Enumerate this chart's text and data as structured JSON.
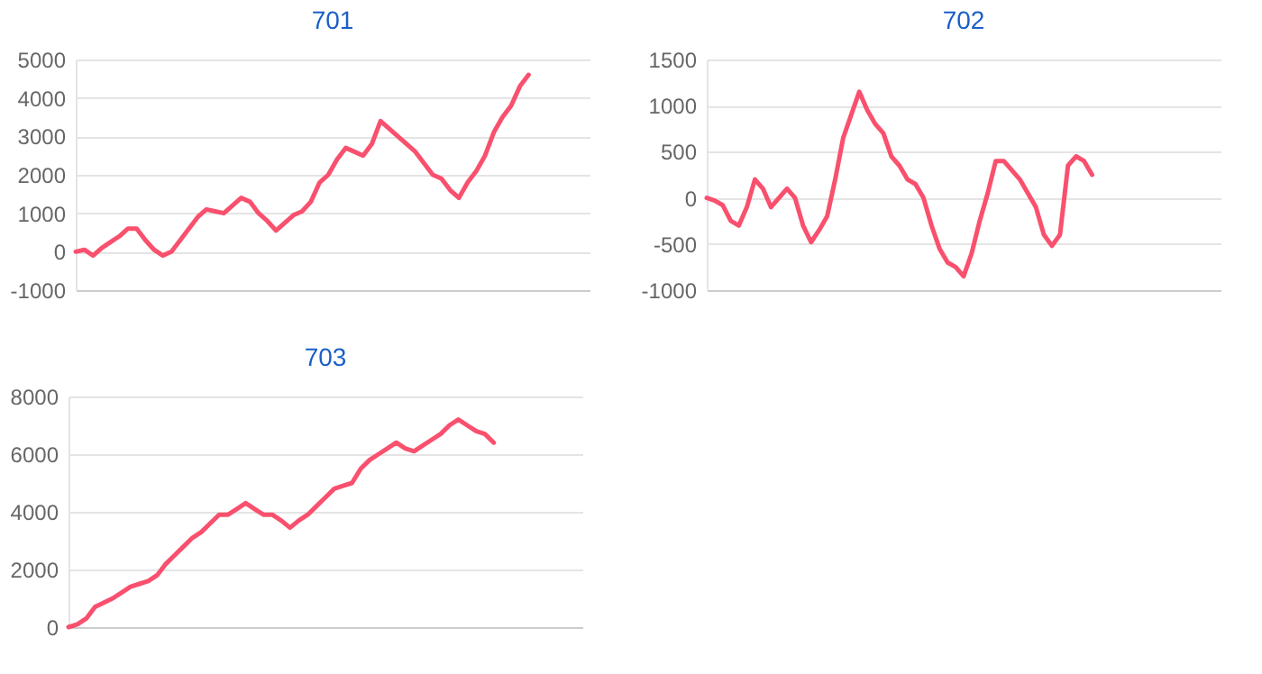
{
  "chart_data": [
    {
      "type": "line",
      "title": "701",
      "color": "#f9506e",
      "categories": [
        null,
        null,
        null,
        null,
        null,
        null,
        null,
        null,
        null,
        null,
        null,
        null,
        null,
        null,
        null,
        null,
        null,
        null,
        null,
        null,
        null,
        null,
        null,
        null,
        null,
        null,
        null,
        null,
        null,
        null,
        null,
        null,
        null,
        null,
        null,
        null,
        null,
        null,
        null,
        null,
        null,
        null,
        null,
        null,
        null,
        null,
        null,
        null,
        null,
        null,
        null,
        null,
        null,
        null,
        null,
        null,
        null,
        null,
        null,
        null
      ],
      "values": [
        0,
        50,
        -100,
        100,
        250,
        400,
        600,
        600,
        300,
        50,
        -100,
        0,
        300,
        600,
        900,
        1100,
        1050,
        1000,
        1200,
        1400,
        1300,
        1000,
        800,
        550,
        750,
        950,
        1050,
        1300,
        1800,
        2000,
        2400,
        2700,
        2600,
        2500,
        2800,
        3400,
        3200,
        3000,
        2800,
        2600,
        2300,
        2000,
        1900,
        1600,
        1400,
        1800,
        2100,
        2500,
        3100,
        3500,
        3800,
        4300,
        4600,
        null,
        null,
        null,
        null,
        null,
        null,
        null
      ],
      "ylim": [
        -1000,
        5000
      ],
      "yticks": [
        -1000,
        0,
        1000,
        2000,
        3000,
        4000,
        5000
      ],
      "grid": "y",
      "tick_labels": "y"
    },
    {
      "type": "line",
      "title": "702",
      "color": "#f9506e",
      "categories": [
        null,
        null,
        null,
        null,
        null,
        null,
        null,
        null,
        null,
        null,
        null,
        null,
        null,
        null,
        null,
        null,
        null,
        null,
        null,
        null,
        null,
        null,
        null,
        null,
        null,
        null,
        null,
        null,
        null,
        null,
        null,
        null,
        null,
        null,
        null,
        null,
        null,
        null,
        null,
        null,
        null,
        null,
        null,
        null,
        null,
        null,
        null,
        null,
        null,
        null,
        null,
        null,
        null,
        null,
        null,
        null,
        null,
        null,
        null,
        null,
        null,
        null,
        null,
        null,
        null
      ],
      "values": [
        0,
        -30,
        -80,
        -250,
        -300,
        -100,
        200,
        100,
        -100,
        0,
        100,
        0,
        -300,
        -480,
        -350,
        -200,
        200,
        650,
        900,
        1150,
        950,
        800,
        700,
        450,
        350,
        200,
        150,
        0,
        -300,
        -550,
        -700,
        -750,
        -850,
        -600,
        -250,
        50,
        400,
        400,
        300,
        200,
        50,
        -100,
        -400,
        -520,
        -400,
        350,
        450,
        400,
        250,
        null,
        null,
        null,
        null,
        null,
        null,
        null,
        null,
        null,
        null,
        null,
        null,
        null,
        null,
        null,
        null
      ],
      "ylim": [
        -1000,
        1500
      ],
      "yticks": [
        -1000,
        -500,
        0,
        500,
        1000,
        1500
      ],
      "grid": "y",
      "tick_labels": "y"
    },
    {
      "type": "line",
      "title": "703",
      "color": "#f9506e",
      "categories": [
        null,
        null,
        null,
        null,
        null,
        null,
        null,
        null,
        null,
        null,
        null,
        null,
        null,
        null,
        null,
        null,
        null,
        null,
        null,
        null,
        null,
        null,
        null,
        null,
        null,
        null,
        null,
        null,
        null,
        null,
        null,
        null,
        null,
        null,
        null,
        null,
        null,
        null,
        null,
        null,
        null,
        null,
        null,
        null,
        null,
        null,
        null,
        null,
        null,
        null,
        null,
        null,
        null,
        null,
        null,
        null,
        null,
        null,
        null
      ],
      "values": [
        0,
        100,
        300,
        700,
        850,
        1000,
        1200,
        1400,
        1500,
        1600,
        1800,
        2200,
        2500,
        2800,
        3100,
        3300,
        3600,
        3900,
        3900,
        4100,
        4300,
        4100,
        3900,
        3900,
        3700,
        3450,
        3700,
        3900,
        4200,
        4500,
        4800,
        4900,
        5000,
        5500,
        5800,
        6000,
        6200,
        6400,
        6200,
        6100,
        6300,
        6500,
        6700,
        7000,
        7200,
        7000,
        6800,
        6700,
        6400,
        null,
        null,
        null,
        null,
        null,
        null,
        null,
        null,
        null,
        null
      ],
      "ylim": [
        0,
        8000
      ],
      "yticks": [
        0,
        2000,
        4000,
        6000,
        8000
      ],
      "grid": "y",
      "tick_labels": "y"
    }
  ]
}
